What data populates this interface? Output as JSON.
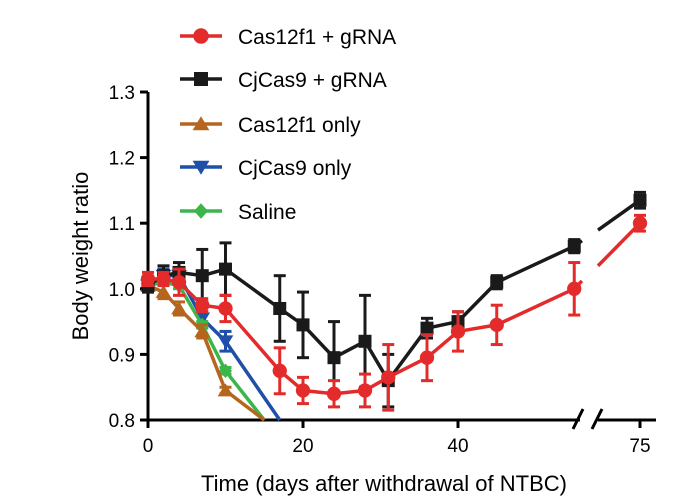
{
  "chart_data": {
    "type": "line",
    "title": "",
    "xlabel": "Time (days after withdrawal of NTBC)",
    "ylabel": "Body weight ratio",
    "xlim": [
      0,
      77
    ],
    "ylim": [
      0.8,
      1.3
    ],
    "x_break": [
      58,
      73
    ],
    "xticks": [
      0,
      20,
      40,
      75
    ],
    "xtick_labels": [
      "0",
      "20",
      "40",
      "75"
    ],
    "yticks": [
      0.8,
      0.9,
      1.0,
      1.1,
      1.2,
      1.3
    ],
    "ytick_labels": [
      "0.8",
      "0.9",
      "1.0",
      "1.1",
      "1.2",
      "1.3"
    ],
    "legend_position": "top",
    "series": [
      {
        "name": "CjCas9 only",
        "color": "#1f4fa8",
        "marker": "triangle-down",
        "x": [
          0,
          2,
          4,
          7,
          10,
          17
        ],
        "y": [
          1.005,
          1.02,
          1.02,
          0.955,
          0.92,
          0.8
        ],
        "err": [
          0.01,
          0.01,
          0.01,
          0.01,
          0.015,
          0
        ]
      },
      {
        "name": "Saline",
        "color": "#3cb54a",
        "marker": "diamond",
        "x": [
          0,
          2,
          4,
          7,
          10,
          15
        ],
        "y": [
          1.005,
          1.01,
          1.005,
          0.945,
          0.875,
          0.8
        ],
        "err": [
          0.005,
          0.005,
          0.005,
          0.005,
          0.005,
          0
        ]
      },
      {
        "name": "Cas12f1 only",
        "color": "#b5651d",
        "marker": "triangle-up",
        "x": [
          0,
          2,
          4,
          7,
          10,
          15
        ],
        "y": [
          1.005,
          0.995,
          0.97,
          0.935,
          0.845,
          0.8
        ],
        "err": [
          0.005,
          0.01,
          0.01,
          0.01,
          0.005,
          0
        ]
      },
      {
        "name": "CjCas9 + gRNA",
        "color": "#1a1a1a",
        "marker": "square",
        "x": [
          0,
          2,
          4,
          7,
          10,
          17,
          20,
          24,
          28,
          31,
          36,
          40,
          45,
          55,
          75
        ],
        "y": [
          1.005,
          1.02,
          1.025,
          1.02,
          1.03,
          0.97,
          0.945,
          0.895,
          0.92,
          0.86,
          0.94,
          0.95,
          1.01,
          1.065,
          1.135
        ],
        "err": [
          0.01,
          0.015,
          0.015,
          0.04,
          0.04,
          0.05,
          0.05,
          0.055,
          0.07,
          0.04,
          0.015,
          0.015,
          0.01,
          0.01,
          0.012
        ]
      },
      {
        "name": "Cas12f1 + gRNA",
        "color": "#e32b2b",
        "marker": "circle",
        "x": [
          0,
          2,
          4,
          7,
          10,
          17,
          20,
          24,
          28,
          31,
          36,
          40,
          45,
          55,
          75
        ],
        "y": [
          1.015,
          1.015,
          1.01,
          0.975,
          0.97,
          0.875,
          0.845,
          0.84,
          0.845,
          0.865,
          0.895,
          0.935,
          0.945,
          1.0,
          1.1
        ],
        "err": [
          0.01,
          0.01,
          0.02,
          0.01,
          0.02,
          0.035,
          0.02,
          0.02,
          0.025,
          0.05,
          0.035,
          0.03,
          0.03,
          0.04,
          0.012
        ]
      }
    ],
    "legend_order": [
      4,
      3,
      2,
      0,
      1
    ]
  }
}
